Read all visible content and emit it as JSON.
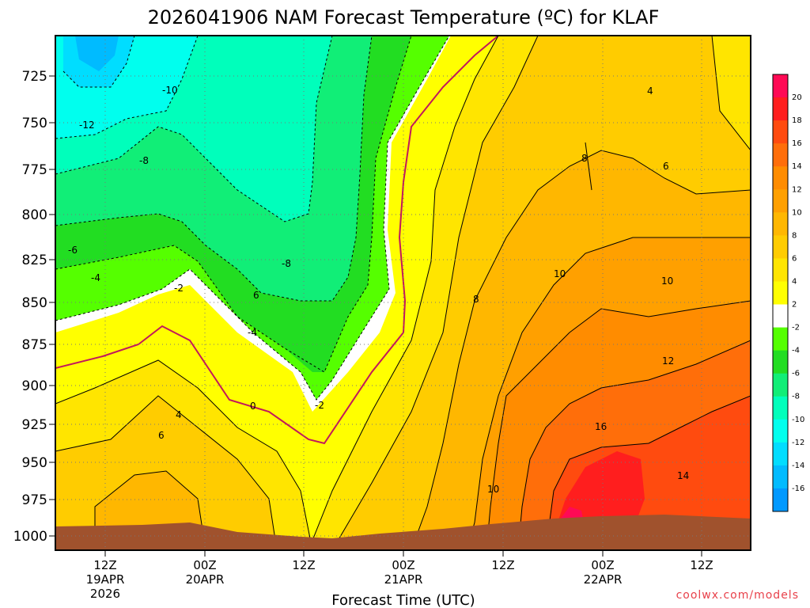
{
  "chart_data": {
    "type": "heatmap",
    "title": "2026041906 NAM Forecast Temperature (ºC) for KLAF",
    "xlabel": "Forecast Time (UTC)",
    "ylabel": "",
    "y_axis": {
      "ticks": [
        "725",
        "750",
        "775",
        "800",
        "825",
        "850",
        "875",
        "900",
        "925",
        "950",
        "975",
        "1000"
      ],
      "range": [
        1000,
        708
      ],
      "direction": "pressure decreasing upward"
    },
    "x_axis": {
      "ticks": [
        {
          "line1": "12Z",
          "line2": "19APR",
          "line3": "2026"
        },
        {
          "line1": "00Z",
          "line2": "20APR",
          "line3": ""
        },
        {
          "line1": "12Z",
          "line2": "",
          "line3": ""
        },
        {
          "line1": "00Z",
          "line2": "21APR",
          "line3": ""
        },
        {
          "line1": "12Z",
          "line2": "",
          "line3": ""
        },
        {
          "line1": "00Z",
          "line2": "22APR",
          "line3": ""
        },
        {
          "line1": "12Z",
          "line2": "",
          "line3": ""
        }
      ]
    },
    "colorbar": {
      "labels": [
        "20",
        "18",
        "16",
        "14",
        "12",
        "10",
        "8",
        "6",
        "4",
        "2",
        "-2",
        "-4",
        "-6",
        "-8",
        "-10",
        "-12",
        "-14",
        "-16"
      ],
      "colors": [
        "#ff0a55",
        "#ff1e1e",
        "#ff4b0f",
        "#ff6e0a",
        "#ff8c00",
        "#ffa000",
        "#ffb700",
        "#ffcc00",
        "#ffe500",
        "#ffff00",
        "#ffffff",
        "#55ff00",
        "#22dd22",
        "#11ee77",
        "#00ffbb",
        "#00ffee",
        "#00ddff",
        "#00bbff",
        "#0099ff"
      ]
    },
    "contour_labels": [
      "-12",
      "-10",
      "-8",
      "-6",
      "-4",
      "-2",
      "-8",
      "6",
      "-4",
      "0",
      "-2",
      "4",
      "6",
      "8",
      "10",
      "12",
      "16",
      "10",
      "14",
      "4",
      "6",
      "8",
      "10"
    ],
    "grid": true
  },
  "credit": "coolwx.com/models"
}
